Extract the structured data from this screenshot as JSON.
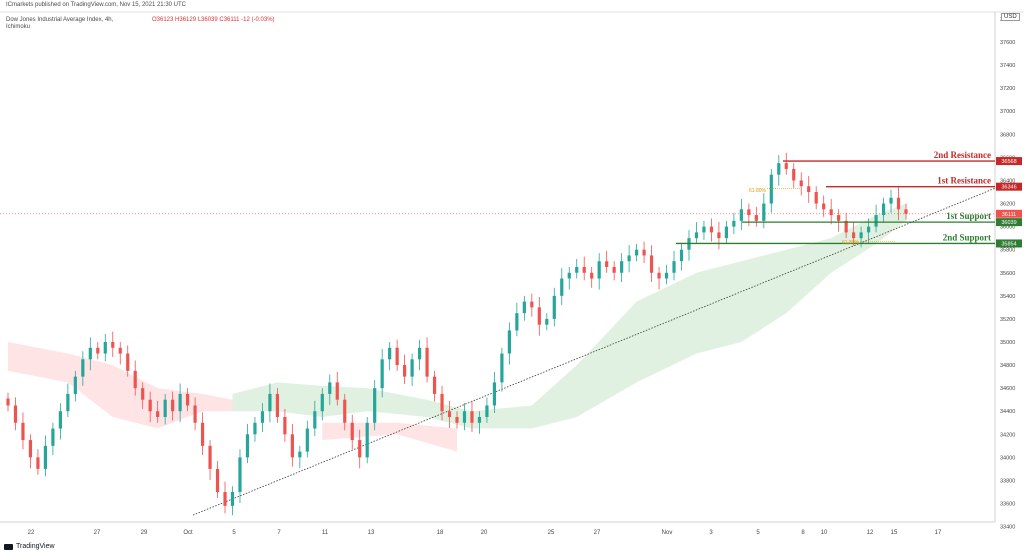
{
  "header": {
    "publisher": "ICmarkets published on TradingView.com, Nov 15, 2021 21:30 UTC",
    "symbol": "Dow Jones Industrial Average Index, 4h,",
    "indicator": "Ichimoku",
    "ohlc": "O36123  H36129  L36039  C36111  -12 (-0.03%)"
  },
  "footer": {
    "brand": "TradingView"
  },
  "chart_data": {
    "type": "candlestick",
    "title": "Dow Jones Industrial Average Index, 4h",
    "ylabel": "USD",
    "ylim": [
      33400,
      37900
    ],
    "y_ticks": [
      33400,
      33600,
      33800,
      34000,
      34200,
      34400,
      34600,
      34800,
      35000,
      35200,
      35400,
      35600,
      35800,
      36000,
      36200,
      36400,
      36600,
      36800,
      37000,
      37200,
      37400,
      37600,
      37800
    ],
    "x_ticks": [
      "22",
      "27",
      "29",
      "Oct",
      "5",
      "7",
      "11",
      "13",
      "18",
      "20",
      "25",
      "27",
      "Nov",
      "3",
      "5",
      "8",
      "10",
      "12",
      "15",
      "17"
    ],
    "current_price": 36111,
    "series": [
      {
        "name": "close",
        "values": [
          34450,
          34300,
          34150,
          34000,
          33900,
          34100,
          34250,
          34400,
          34550,
          34700,
          34850,
          34950,
          34900,
          35000,
          34950,
          34900,
          34750,
          34600,
          34500,
          34400,
          34350,
          34500,
          34400,
          34550,
          34450,
          34300,
          34100,
          33900,
          33700,
          33580,
          33700,
          34000,
          34200,
          34300,
          34400,
          34550,
          34350,
          34200,
          34000,
          34050,
          34250,
          34400,
          34550,
          34650,
          34500,
          34300,
          34150,
          34000,
          34300,
          34600,
          34850,
          34950,
          34800,
          34700,
          34850,
          34950,
          34700,
          34550,
          34400,
          34350,
          34300,
          34400,
          34300,
          34350,
          34450,
          34650,
          34900,
          35100,
          35250,
          35350,
          35300,
          35150,
          35200,
          35400,
          35550,
          35600,
          35650,
          35600,
          35550,
          35700,
          35650,
          35600,
          35700,
          35750,
          35800,
          35750,
          35600,
          35550,
          35600,
          35700,
          35800,
          35900,
          35950,
          36000,
          35950,
          35900,
          36000,
          36050,
          36150,
          36100,
          36050,
          36200,
          36450,
          36550,
          36500,
          36400,
          36350,
          36300,
          36200,
          36150,
          36100,
          36050,
          35950,
          35900,
          35950,
          36000,
          36100,
          36200,
          36250,
          36150,
          36111
        ]
      }
    ],
    "levels": [
      {
        "name": "2nd Resistance",
        "value": 36568,
        "color": "#c62828"
      },
      {
        "name": "1st Resistance",
        "value": 36346,
        "color": "#c62828"
      },
      {
        "name": "1st Support",
        "value": 36039,
        "color": "#2e7d32"
      },
      {
        "name": "2nd Support",
        "value": 35854,
        "color": "#2e7d32"
      }
    ],
    "fib_labels": [
      "61.80%",
      "61.80%"
    ],
    "colors": {
      "up": "#26a69a",
      "down": "#ef5350",
      "cloud_bull": "#c8e6c9",
      "cloud_bear": "#ffcdd2"
    }
  }
}
